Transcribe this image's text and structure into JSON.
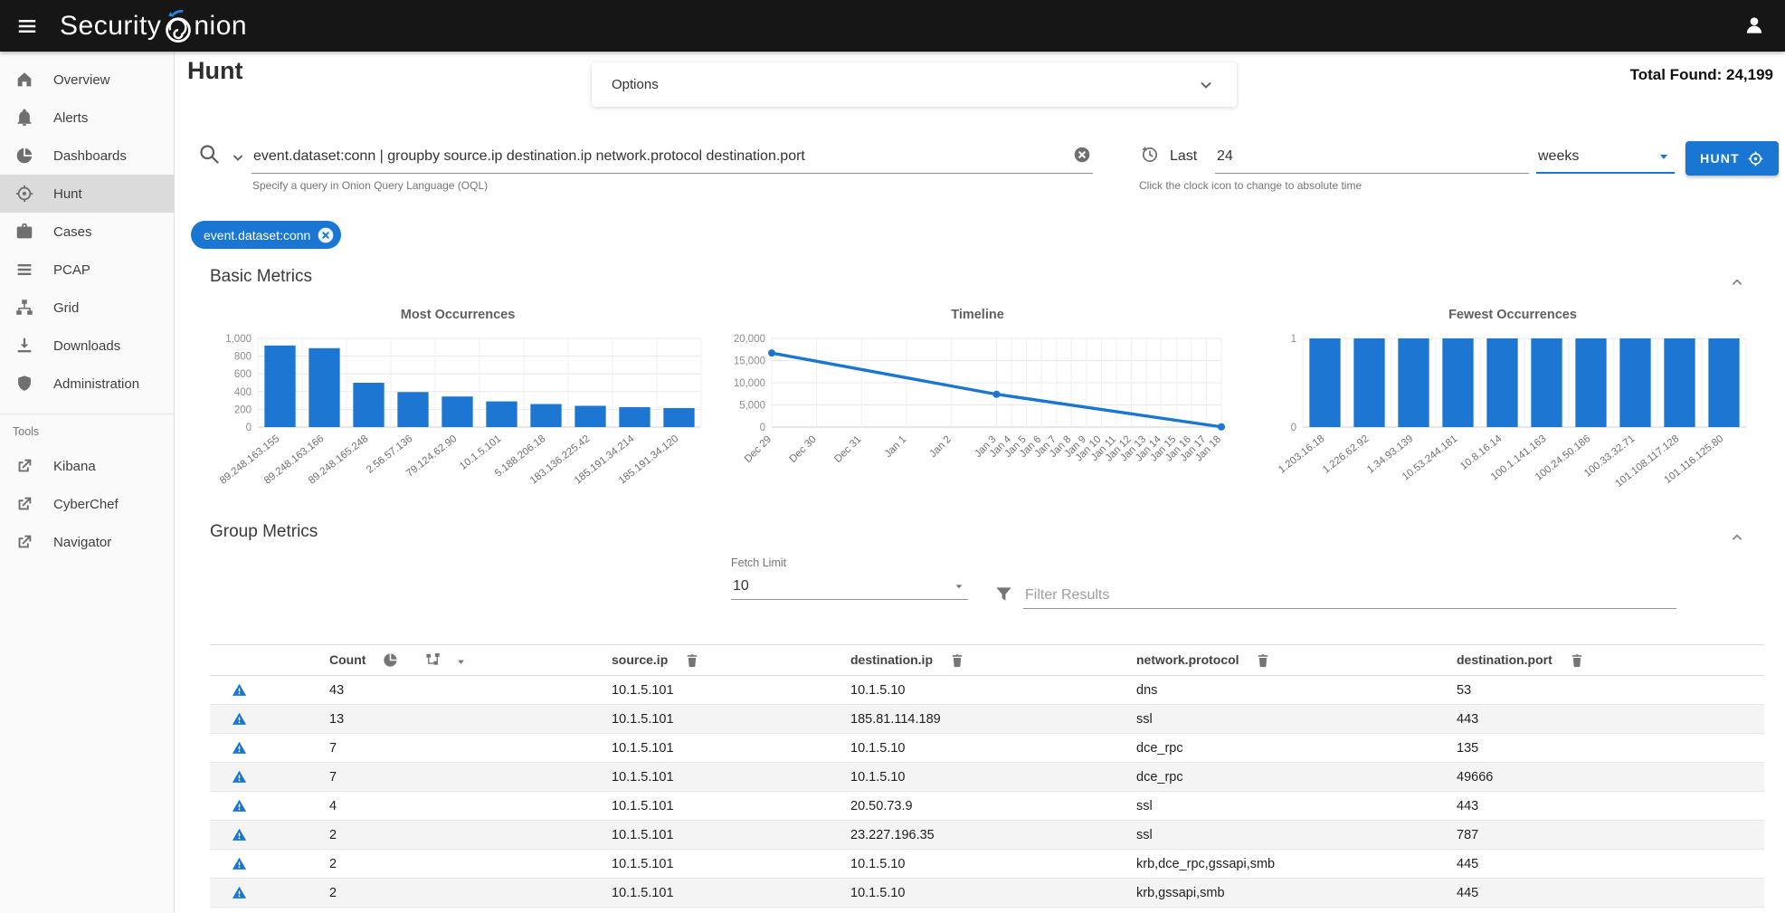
{
  "topbar": {
    "brand_prefix": "Security",
    "brand_suffix": "nion"
  },
  "sidebar": {
    "items": [
      {
        "label": "Overview"
      },
      {
        "label": "Alerts"
      },
      {
        "label": "Dashboards"
      },
      {
        "label": "Hunt",
        "active": true
      },
      {
        "label": "Cases"
      },
      {
        "label": "PCAP"
      },
      {
        "label": "Grid"
      },
      {
        "label": "Downloads"
      },
      {
        "label": "Administration"
      }
    ],
    "tools_label": "Tools",
    "tools": [
      {
        "label": "Kibana"
      },
      {
        "label": "CyberChef"
      },
      {
        "label": "Navigator"
      }
    ]
  },
  "header": {
    "title": "Hunt",
    "options_label": "Options",
    "total_found_label": "Total Found:",
    "total_found_value": "24,199"
  },
  "query": {
    "value": "event.dataset:conn | groupby source.ip destination.ip network.protocol destination.port",
    "hint": "Specify a query in Onion Query Language (OQL)",
    "time_label": "Last",
    "time_value": "24",
    "time_unit": "weeks",
    "time_hint": "Click the clock icon to change to absolute time",
    "hunt_label": "HUNT"
  },
  "filters": [
    {
      "label": "event.dataset:conn"
    }
  ],
  "sections": {
    "basic": "Basic Metrics",
    "group": "Group Metrics"
  },
  "group_controls": {
    "fetch_limit_label": "Fetch Limit",
    "fetch_limit_value": "10",
    "filter_placeholder": "Filter Results"
  },
  "chart_data": [
    {
      "type": "bar",
      "title": "Most Occurrences",
      "categories": [
        "89.248.163.155",
        "89.248.163.166",
        "89.248.165.248",
        "2.56.57.136",
        "79.124.62.90",
        "10.1.5.101",
        "5.188.206.18",
        "183.136.225.42",
        "185.191.34.214",
        "185.191.34.120"
      ],
      "values": [
        920,
        890,
        500,
        395,
        345,
        290,
        260,
        240,
        225,
        215
      ],
      "ylim": [
        0,
        1000
      ],
      "yticks": [
        0,
        200,
        400,
        600,
        800,
        1000
      ],
      "grid": true,
      "legend": false
    },
    {
      "type": "line",
      "title": "Timeline",
      "x": [
        "Dec 29",
        "Dec 30",
        "Dec 31",
        "Jan 1",
        "Jan 2",
        "Jan 3",
        "Jan 4",
        "Jan 5",
        "Jan 6",
        "Jan 7",
        "Jan 8",
        "Jan 9",
        "Jan 10",
        "Jan 11",
        "Jan 12",
        "Jan 13",
        "Jan 14",
        "Jan 15",
        "Jan 16",
        "Jan 17",
        "Jan 18"
      ],
      "series": [
        {
          "name": "events",
          "points": [
            [
              "Dec 29",
              16700
            ],
            [
              "Jan 3",
              7400
            ],
            [
              "Jan 18",
              50
            ]
          ]
        }
      ],
      "ylim": [
        0,
        20000
      ],
      "yticks": [
        0,
        5000,
        10000,
        15000,
        20000
      ],
      "grid": true,
      "layout_note": "ticks Dec 29 through Jan 3 are spaced about 3x wider than ticks Jan 3 through Jan 18"
    },
    {
      "type": "bar",
      "title": "Fewest Occurrences",
      "categories": [
        "1.203.16.18",
        "1.226.62.92",
        "1.34.93.139",
        "10.53.244.181",
        "10.8.16.14",
        "100.1.141.163",
        "100.24.50.186",
        "100.33.32.71",
        "101.108.117.128",
        "101.116.125.80"
      ],
      "values": [
        1,
        1,
        1,
        1,
        1,
        1,
        1,
        1,
        1,
        1
      ],
      "ylim": [
        0,
        1
      ],
      "yticks": [
        0,
        1
      ],
      "grid": true
    }
  ],
  "table": {
    "columns": [
      "Count",
      "source.ip",
      "destination.ip",
      "network.protocol",
      "destination.port"
    ],
    "rows": [
      [
        "43",
        "10.1.5.101",
        "10.1.5.10",
        "dns",
        "53"
      ],
      [
        "13",
        "10.1.5.101",
        "185.81.114.189",
        "ssl",
        "443"
      ],
      [
        "7",
        "10.1.5.101",
        "10.1.5.10",
        "dce_rpc",
        "135"
      ],
      [
        "7",
        "10.1.5.101",
        "10.1.5.10",
        "dce_rpc",
        "49666"
      ],
      [
        "4",
        "10.1.5.101",
        "20.50.73.9",
        "ssl",
        "443"
      ],
      [
        "2",
        "10.1.5.101",
        "23.227.196.35",
        "ssl",
        "787"
      ],
      [
        "2",
        "10.1.5.101",
        "10.1.5.10",
        "krb,dce_rpc,gssapi,smb",
        "445"
      ],
      [
        "2",
        "10.1.5.101",
        "10.1.5.10",
        "krb,gssapi,smb",
        "445"
      ]
    ]
  },
  "colors": {
    "accent": "#1976d2",
    "chart_bar": "#1d76d2",
    "logo_arc": "#1e88e5",
    "topbar_bg": "#161616"
  }
}
